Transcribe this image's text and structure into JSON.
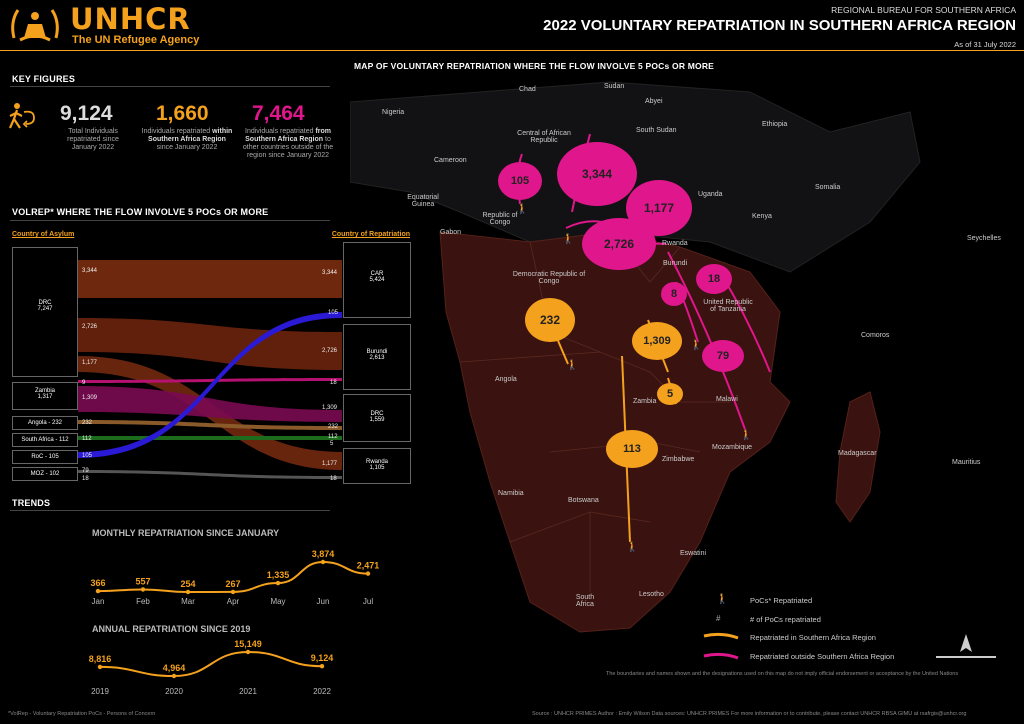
{
  "header": {
    "org": "UNHCR",
    "tagline": "The UN Refugee Agency",
    "bureau": "REGIONAL BUREAU FOR SOUTHERN AFRICA",
    "title": "2022 VOLUNTARY REPATRIATION IN  SOUTHERN AFRICA REGION",
    "as_of": "As of 31 July 2022"
  },
  "key_figures": {
    "heading": "KEY FIGURES",
    "total": {
      "value": "9,124",
      "desc": "Total Individuals repatriated  since January 2022"
    },
    "within": {
      "value": "1,660",
      "desc_pre": "Individuals repatriated ",
      "desc_bold": "within Southern Africa Region",
      "desc_post": "  since January 2022"
    },
    "outside": {
      "value": "7,464",
      "desc_pre": "Individuals repatriated ",
      "desc_bold": "from Southern Africa Region",
      "desc_post": " to other countries outside of the region since January 2022"
    }
  },
  "flow": {
    "heading": "VOLREP* WHERE THE FLOW INVOLVE 5 POCs OR MORE",
    "asylum_heading": "Country of Asylum",
    "repatriation_heading": "Country of Repatriation",
    "asylum": [
      {
        "name": "DRC",
        "value": "7,247"
      },
      {
        "name": "Zambia",
        "value": "1,317"
      },
      {
        "name": "Angola - 232",
        "value": ""
      },
      {
        "name": "South Africa - 112",
        "value": ""
      },
      {
        "name": "RoC - 105",
        "value": ""
      },
      {
        "name": "MOZ - 102",
        "value": ""
      }
    ],
    "repatriation": [
      {
        "name": "CAR",
        "value": "5,424"
      },
      {
        "name": "Burundi",
        "value": "2,613"
      },
      {
        "name": "DRC",
        "value": "1,559"
      },
      {
        "name": "Rwanda",
        "value": "1,105"
      }
    ],
    "left_labels": [
      "3,344",
      "2,726",
      "1,177",
      "9",
      "1,309",
      "232",
      "112",
      "105",
      "79",
      "18"
    ],
    "right_labels": [
      "3,344",
      "105",
      "2,726",
      "1,309",
      "18",
      "232",
      "112",
      "5",
      "1,177",
      "18"
    ]
  },
  "trends": {
    "heading": "TRENDS",
    "monthly": {
      "title": "MONTHLY REPATRIATION SINCE JANUARY",
      "months": [
        "Jan",
        "Feb",
        "Mar",
        "Apr",
        "May",
        "Jun",
        "Jul"
      ],
      "values": [
        366,
        557,
        254,
        267,
        1335,
        3874,
        2471
      ],
      "labels": [
        "366",
        "557",
        "254",
        "267",
        "1,335",
        "3,874",
        "2,471"
      ]
    },
    "annual": {
      "title": "ANNUAL REPATRIATION  SINCE 2019",
      "years": [
        "2019",
        "2020",
        "2021",
        "2022"
      ],
      "values": [
        8816,
        4964,
        15149,
        9124
      ],
      "labels": [
        "8,816",
        "4,964",
        "15,149",
        "9,124"
      ]
    }
  },
  "map": {
    "title": "MAP OF VOLUNTARY REPATRIATION  WHERE THE FLOW INVOLVE 5 POCs OR MORE",
    "countries": [
      "Chad",
      "Sudan",
      "Nigeria",
      "Abyei",
      "Central of African Republic",
      "South Sudan",
      "Ethiopia",
      "Cameroon",
      "Somalia",
      "Equatorial Guinea",
      "Uganda",
      "Republic of Congo",
      "Kenya",
      "Gabon",
      "Seychelles",
      "Rwanda",
      "Burundi",
      "Democratic Republic of Congo",
      "United Republic of Tanzania",
      "Comoros",
      "Angola",
      "Malawi",
      "Zambia",
      "Mozambique",
      "Madagascar",
      "Mauritius",
      "Zimbabwe",
      "Namibia",
      "Botswana",
      "Eswatini",
      "South Africa",
      "Lesotho"
    ],
    "bubbles_pink": [
      "105",
      "3,344",
      "1,177",
      "2,726",
      "18",
      "8",
      "79"
    ],
    "bubbles_orange": [
      "232",
      "1,309",
      "5",
      "113"
    ],
    "legend": {
      "pocs": "PoCs* Repatriated",
      "number": "# of PoCs repatriated",
      "within": "Repatriated in Southern Africa Region",
      "outside": "Repatriated outside Southern Africa Region"
    },
    "disclaimer": "The boundaries and names shown and the designations used on this map do not imply official endorsement or acceptance by the United Nations"
  },
  "footer": {
    "note": "*VolRep - Voluntary Repatriation    PoCs - Persons of Concern",
    "source": "Source : UNHCR PRIMES     Author : Emily Wilson     Data sources: UNHCR PRIMES     For more information or to contribute, please contact UNHCR RBSA GIMU at rsafrgis@unhcr.org"
  },
  "colors": {
    "accent": "#f4a11d",
    "pink": "#e0168c",
    "land": "#3a120f",
    "blue": "#2a1ad6"
  }
}
